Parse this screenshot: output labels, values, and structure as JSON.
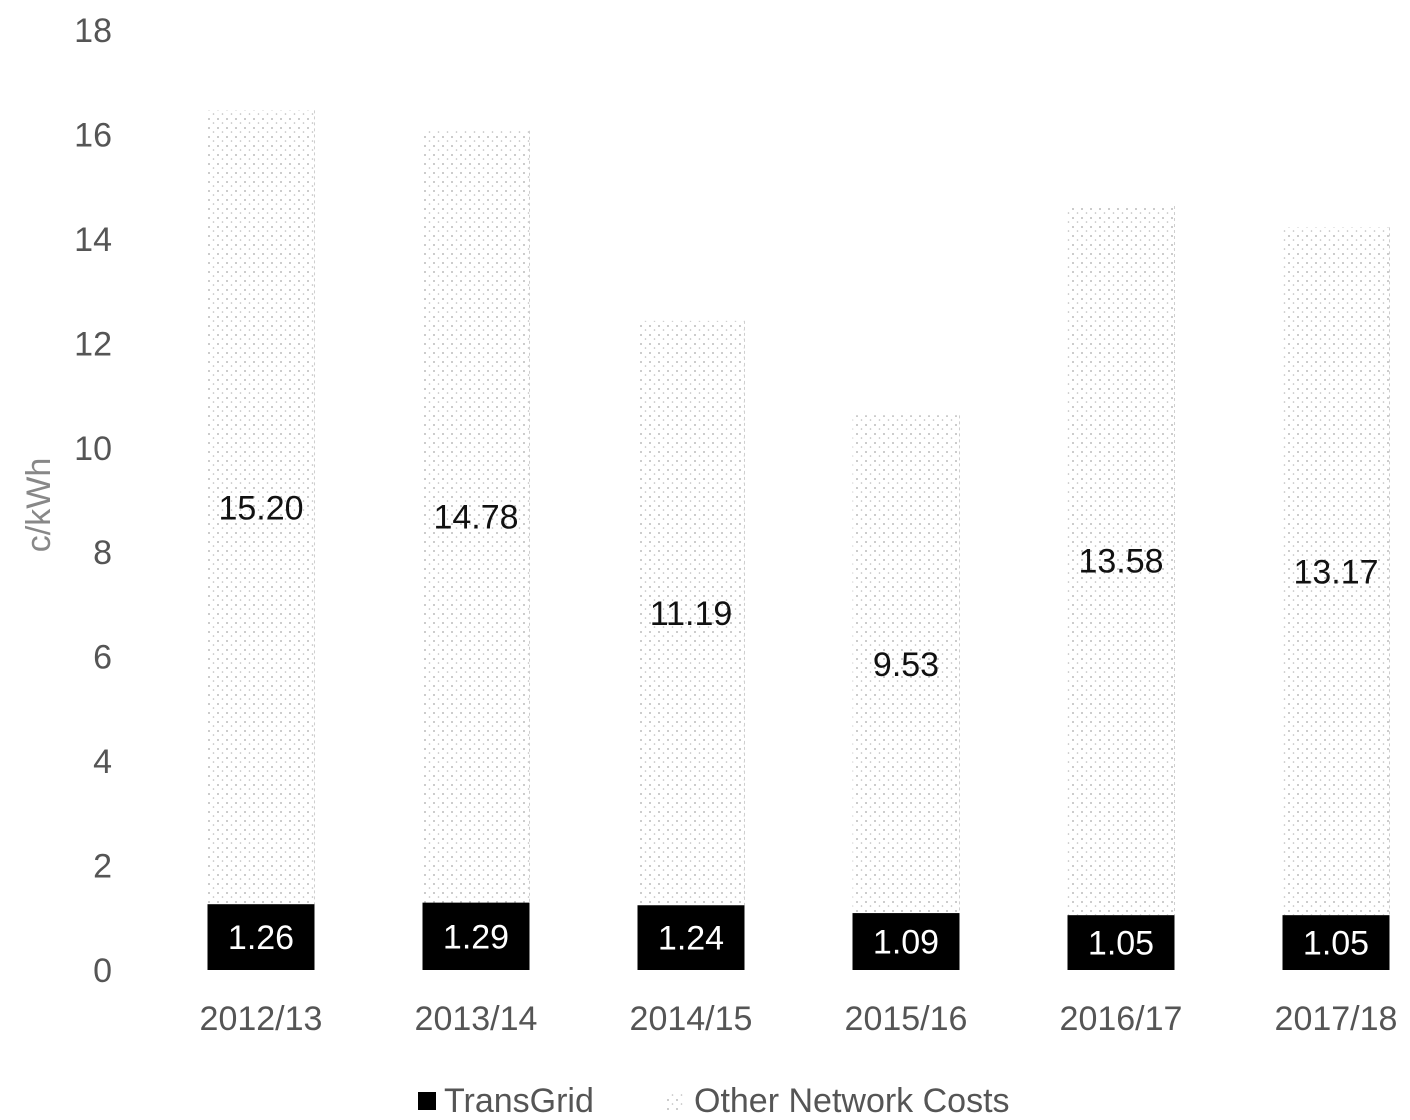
{
  "chart_data": {
    "type": "bar",
    "stacked": true,
    "title": "",
    "xlabel": "",
    "ylabel": "c/kWh",
    "ylim": [
      0,
      18
    ],
    "yticks": [
      "0",
      "2",
      "4",
      "6",
      "8",
      "10",
      "12",
      "14",
      "16",
      "18"
    ],
    "categories": [
      "2012/13",
      "2013/14",
      "2014/15",
      "2015/16",
      "2016/17",
      "2017/18"
    ],
    "series": [
      {
        "name": "TransGrid",
        "values": [
          1.26,
          1.29,
          1.24,
          1.09,
          1.05,
          1.05
        ],
        "labels": [
          "1.26",
          "1.29",
          "1.24",
          "1.09",
          "1.05",
          "1.05"
        ],
        "color": "#000000"
      },
      {
        "name": "Other Network Costs",
        "values": [
          15.2,
          14.78,
          11.19,
          9.53,
          13.58,
          13.17
        ],
        "labels": [
          "15.20",
          "14.78",
          "11.19",
          "9.53",
          "13.58",
          "13.17"
        ],
        "color": "#c8c8c8",
        "pattern": "dotted"
      }
    ],
    "grid": false,
    "legend_position": "bottom"
  }
}
